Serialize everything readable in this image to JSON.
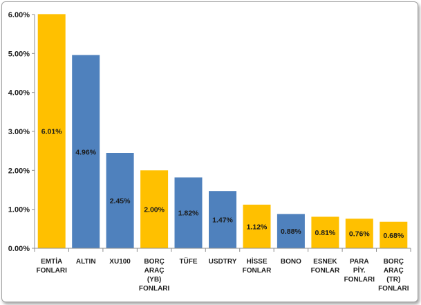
{
  "chart_data": {
    "type": "bar",
    "categories": [
      [
        "EMTİA",
        "FONLARI"
      ],
      [
        "ALTIN"
      ],
      [
        "XU100"
      ],
      [
        "BORÇ",
        "ARAÇ",
        "(YB)",
        "FONLARI"
      ],
      [
        "TÜFE"
      ],
      [
        "USDTRY"
      ],
      [
        "HİSSE",
        "FONLAR"
      ],
      [
        "BONO"
      ],
      [
        "ESNEK",
        "FONLAR"
      ],
      [
        "PARA",
        "PİY.",
        "FONLARI"
      ],
      [
        "BORÇ",
        "ARAÇ",
        "(TR)",
        "FONLARI"
      ]
    ],
    "values": [
      6.01,
      4.96,
      2.45,
      2.0,
      1.82,
      1.47,
      1.12,
      0.88,
      0.81,
      0.76,
      0.68
    ],
    "data_labels": [
      "6.01%",
      "4.96%",
      "2.45%",
      "2.00%",
      "1.82%",
      "1.47%",
      "1.12%",
      "0.88%",
      "0.81%",
      "0.76%",
      "0.68%"
    ],
    "bar_colors": [
      "#FFC000",
      "#4F81BD",
      "#4F81BD",
      "#FFC000",
      "#4F81BD",
      "#4F81BD",
      "#FFC000",
      "#4F81BD",
      "#FFC000",
      "#FFC000",
      "#FFC000"
    ],
    "ylim": [
      0,
      6
    ],
    "yticks": [
      0,
      1,
      2,
      3,
      4,
      5,
      6
    ],
    "ytick_labels": [
      "0.00%",
      "1.00%",
      "2.00%",
      "3.00%",
      "4.00%",
      "5.00%",
      "6.00%"
    ],
    "grid": false,
    "title": "",
    "xlabel": "",
    "ylabel": ""
  }
}
